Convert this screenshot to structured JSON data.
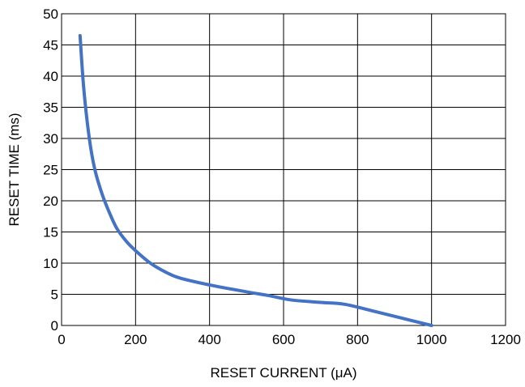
{
  "chart_data": {
    "type": "line",
    "xlabel": "RESET CURRENT (μA)",
    "ylabel": "RESET TIME (ms)",
    "xlim": [
      0,
      1200
    ],
    "ylim": [
      0,
      50
    ],
    "xticks": [
      "0",
      "200",
      "400",
      "600",
      "800",
      "1000",
      "1200"
    ],
    "yticks": [
      "0",
      "5",
      "10",
      "15",
      "20",
      "25",
      "30",
      "35",
      "40",
      "45",
      "50"
    ],
    "grid": true,
    "line_color": "#4472C4",
    "series": [
      {
        "x": [
          50,
          60,
          75,
          90,
          110,
          130,
          150,
          175,
          200,
          240,
          280,
          320,
          400,
          500,
          560,
          620,
          700,
          765,
          850,
          1000
        ],
        "y": [
          46.5,
          38,
          30,
          25,
          21,
          18,
          15.5,
          13.5,
          12,
          10,
          8.6,
          7.6,
          6.5,
          5.4,
          4.8,
          4.1,
          3.7,
          3.4,
          2.2,
          0
        ]
      }
    ]
  }
}
